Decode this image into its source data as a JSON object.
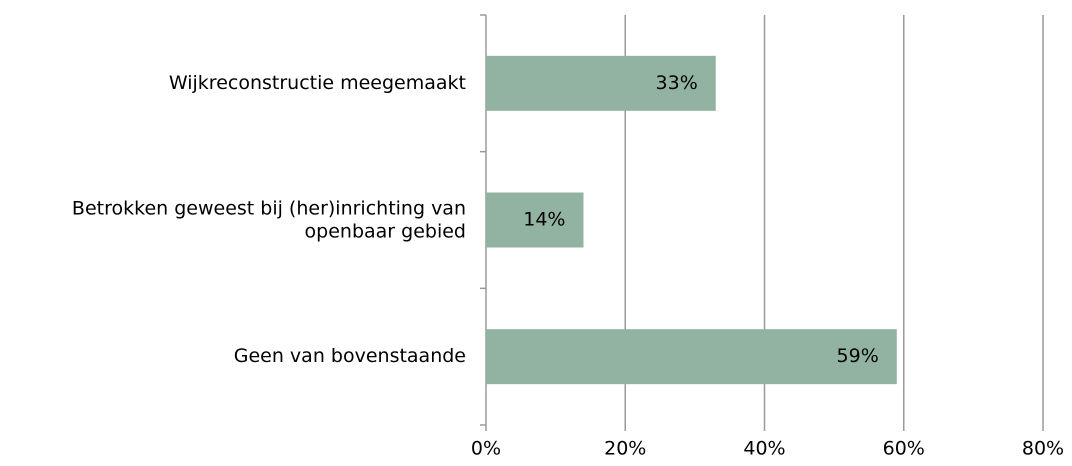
{
  "chart_data": {
    "type": "barh",
    "categories": [
      "Wijkreconstructie meegemaakt",
      "Betrokken geweest bij (her)inrichting van openbaar gebied",
      "Geen van bovenstaande"
    ],
    "values": [
      33,
      14,
      59
    ],
    "value_labels": [
      "33%",
      "14%",
      "59%"
    ],
    "color": "#93b3a2",
    "xlim": [
      0,
      80
    ],
    "xticks": [
      {
        "value": 0,
        "label": "0%"
      },
      {
        "value": 20,
        "label": "20%"
      },
      {
        "value": 40,
        "label": "40%"
      },
      {
        "value": 60,
        "label": "60%"
      },
      {
        "value": 80,
        "label": "80%"
      }
    ],
    "grid": true
  }
}
